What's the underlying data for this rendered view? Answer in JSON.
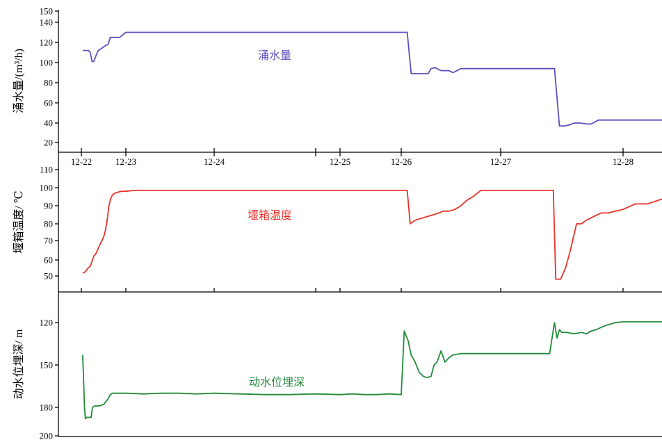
{
  "chart_data": [
    {
      "type": "line",
      "ylabel": "涌水量/(m³/h)",
      "annotation": "涌水量",
      "color": "#5b4fbf",
      "ylim": [
        10,
        150
      ],
      "yticks": [
        20,
        40,
        60,
        80,
        100,
        120,
        140,
        150
      ],
      "x_range_days": [
        21.95,
        28.35
      ],
      "xticks": [
        "12-22",
        "12-23",
        "12-24",
        "12-25",
        "12-26",
        "12-27",
        "12-28"
      ],
      "x": [
        22.03,
        22.1,
        22.13,
        22.16,
        22.2,
        22.24,
        22.28,
        22.32,
        22.38,
        22.45,
        22.55,
        22.6,
        22.65,
        22.72,
        22.8,
        22.86,
        23.0,
        23.25,
        23.5,
        24.0,
        24.5,
        25.0,
        25.5,
        26.0,
        26.06,
        26.1,
        26.15,
        26.2,
        26.24,
        26.27,
        26.3,
        26.34,
        26.4,
        26.45,
        26.48,
        26.52,
        26.6,
        26.8,
        27.0,
        27.2,
        27.4,
        27.44,
        27.48,
        27.52,
        27.56,
        27.6,
        27.65,
        27.7,
        27.74,
        27.8,
        28.0,
        28.2,
        28.33
      ],
      "y": [
        112,
        112,
        112,
        112,
        110,
        101,
        101,
        106,
        112,
        114,
        117,
        118,
        125,
        125,
        125,
        125,
        130,
        130,
        130,
        130,
        130,
        130,
        130,
        130,
        130,
        89,
        89,
        89,
        89,
        89,
        94,
        95,
        92,
        92,
        92,
        90,
        94,
        94,
        94,
        94,
        94,
        94,
        37,
        37,
        38,
        40,
        40,
        39,
        39,
        43,
        43,
        43,
        43
      ]
    },
    {
      "type": "line",
      "ylabel": "堰箱温度/ ℃",
      "annotation": "堰箱温度",
      "color": "#e8332a",
      "ylim": [
        40,
        115
      ],
      "yticks": [
        50,
        60,
        70,
        80,
        90,
        100,
        110
      ],
      "x_range_days": [
        21.95,
        28.35
      ],
      "x": [
        22.03,
        22.06,
        22.1,
        22.15,
        22.2,
        22.25,
        22.28,
        22.32,
        22.38,
        22.44,
        22.5,
        22.54,
        22.58,
        22.62,
        22.66,
        22.7,
        22.76,
        22.82,
        22.9,
        23.0,
        23.1,
        23.2,
        23.4,
        23.8,
        24.2,
        24.6,
        25.0,
        25.4,
        25.8,
        26.03,
        26.06,
        26.09,
        26.14,
        26.2,
        26.26,
        26.32,
        26.38,
        26.42,
        26.48,
        26.54,
        26.6,
        26.66,
        26.72,
        26.8,
        26.9,
        27.0,
        27.2,
        27.38,
        27.43,
        27.45,
        27.49,
        27.53,
        27.57,
        27.62,
        27.66,
        27.7,
        27.76,
        27.82,
        27.88,
        27.94,
        28.0,
        28.1,
        28.2,
        28.33
      ],
      "y": [
        52,
        52,
        53,
        55,
        56,
        60,
        62,
        63,
        66,
        69,
        72,
        76,
        82,
        90,
        94,
        96,
        97,
        97.5,
        98,
        98,
        98.5,
        98.5,
        98.5,
        98.5,
        98.5,
        98.5,
        98.5,
        98.5,
        98.5,
        98.5,
        98.5,
        80,
        82,
        83,
        84,
        85,
        86,
        87,
        87,
        88,
        90,
        93,
        95,
        98.5,
        98.5,
        98.5,
        98.5,
        98.5,
        98.5,
        48,
        48,
        55,
        65,
        80,
        80,
        82,
        84,
        86,
        86,
        87,
        88,
        91,
        91,
        94
      ]
    },
    {
      "type": "line",
      "ylabel": "动水位埋深/ m",
      "annotation": "动水位埋深",
      "color": "#228b3a",
      "ylim": [
        106,
        200
      ],
      "y_inverted": true,
      "yticks": [
        120,
        150,
        180,
        200
      ],
      "x_range_days": [
        21.95,
        28.35
      ],
      "x": [
        22.03,
        22.05,
        22.07,
        22.09,
        22.12,
        22.17,
        22.22,
        22.25,
        22.3,
        22.4,
        22.5,
        22.6,
        22.65,
        22.7,
        22.76,
        22.85,
        23.0,
        23.2,
        23.4,
        23.6,
        23.8,
        24.0,
        24.2,
        24.4,
        24.6,
        24.8,
        25.0,
        25.2,
        25.4,
        25.6,
        25.8,
        26.0,
        26.03,
        26.07,
        26.1,
        26.14,
        26.18,
        26.22,
        26.26,
        26.3,
        26.33,
        26.36,
        26.4,
        26.44,
        26.48,
        26.52,
        26.6,
        26.7,
        26.8,
        27.0,
        27.2,
        27.4,
        27.44,
        27.46,
        27.48,
        27.5,
        27.54,
        27.6,
        27.66,
        27.7,
        27.74,
        27.78,
        27.86,
        27.94,
        28.0,
        28.1,
        28.2,
        28.33
      ],
      "y": [
        143,
        160,
        180,
        188,
        187,
        187,
        187,
        180,
        179,
        179,
        178,
        174,
        171,
        170,
        170,
        170,
        170,
        170.5,
        170,
        170,
        170.5,
        170,
        170.5,
        171,
        171,
        170.5,
        171,
        170.5,
        171,
        171,
        170.5,
        171,
        126,
        133,
        143,
        148,
        155,
        158,
        159,
        158,
        150,
        148,
        140,
        148,
        145,
        143,
        142,
        142,
        142,
        142,
        142,
        142,
        120,
        131,
        125,
        127,
        127,
        128,
        127,
        128,
        126,
        125,
        122,
        120,
        119.5,
        119.5,
        119.5,
        119.5
      ]
    }
  ]
}
